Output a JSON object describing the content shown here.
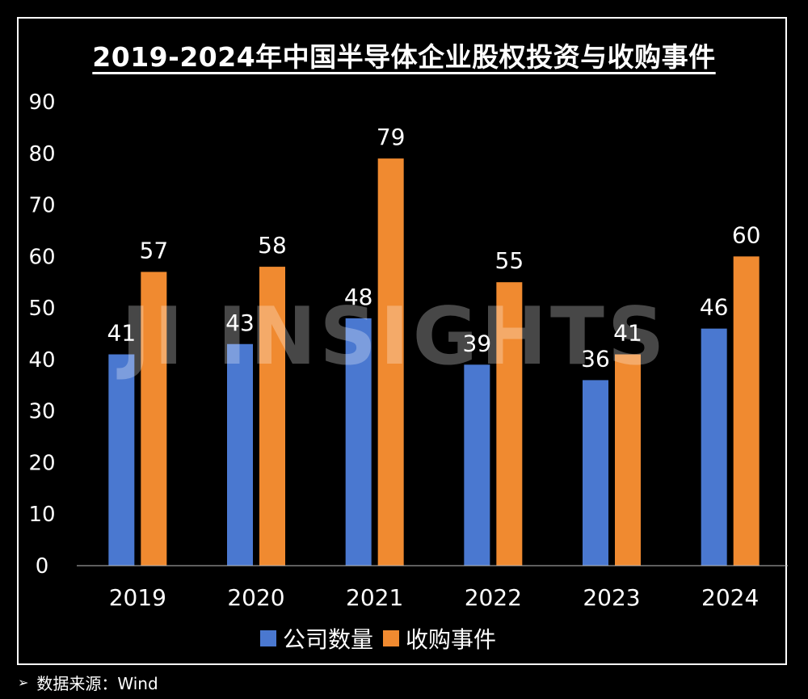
{
  "title": "2019-2024年中国半导体企业股权投资与收购事件",
  "watermark": "JI INSIGHTS",
  "source": {
    "arrow": "➢",
    "text": "数据来源：Wind"
  },
  "colors": {
    "series1": "#4a78d0",
    "series2": "#f08a30",
    "background": "#000000",
    "text": "#ffffff"
  },
  "chart_data": {
    "type": "bar",
    "categories": [
      "2019",
      "2020",
      "2021",
      "2022",
      "2023",
      "2024"
    ],
    "series": [
      {
        "name": "公司数量",
        "values": [
          41,
          43,
          48,
          39,
          36,
          46
        ]
      },
      {
        "name": "收购事件",
        "values": [
          57,
          58,
          79,
          55,
          41,
          60
        ]
      }
    ],
    "yticks": [
      "0",
      "10",
      "20",
      "30",
      "40",
      "50",
      "60",
      "70",
      "80",
      "90"
    ],
    "ylim": [
      0,
      90
    ],
    "grid": false,
    "legend": "bottom",
    "data_labels": true
  }
}
